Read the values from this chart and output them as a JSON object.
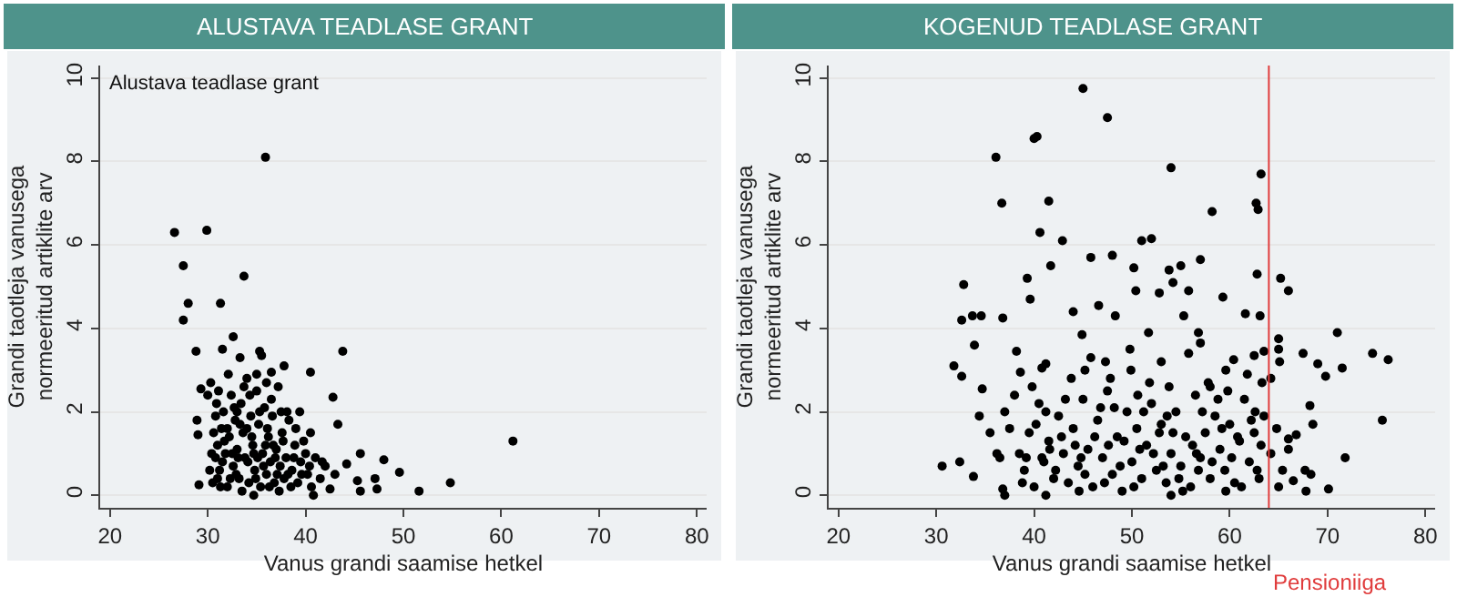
{
  "chart_data": [
    {
      "type": "scatter",
      "title": "ALUSTAVA TEADLASE GRANT",
      "xlabel": "Vanus grandi saamise hetkel",
      "ylabel": "Grandi taotleja vanusega\nnormeeritud artiklite arv",
      "annotations": [
        "Alustava teadlase grant"
      ],
      "xlim": [
        19,
        81
      ],
      "ylim": [
        -0.3,
        10.3
      ],
      "xticks": [
        20,
        30,
        40,
        50,
        60,
        70,
        80
      ],
      "yticks": [
        0,
        2,
        4,
        6,
        8,
        10
      ],
      "grid": "y",
      "marker": "circle",
      "color": "#000000",
      "x": [
        35.9,
        26.6,
        29.9,
        27.5,
        33.7,
        28.0,
        31.3,
        27.5,
        32.6,
        28.8,
        31.5,
        35.3,
        43.8,
        33.3,
        37.8,
        40.5,
        36.5,
        35.5,
        42.8,
        43.3,
        61.2,
        54.8,
        51.6,
        49.6,
        48.0,
        45.6,
        44.2,
        45.3,
        47.1,
        47.3,
        45.6,
        40.5,
        41.7,
        40.8,
        34.7,
        29.1,
        29.0,
        28.9,
        29.3,
        30.0,
        30.5,
        30.8,
        31.0,
        31.2,
        31.4,
        31.6,
        31.8,
        32.0,
        32.2,
        32.4,
        32.6,
        32.8,
        33.0,
        33.2,
        33.4,
        33.6,
        33.8,
        34.0,
        34.2,
        34.4,
        34.6,
        34.8,
        35.0,
        35.2,
        35.4,
        35.6,
        35.8,
        36.0,
        36.2,
        36.4,
        36.6,
        36.8,
        37.0,
        37.2,
        37.4,
        37.6,
        37.8,
        38.0,
        38.3,
        38.6,
        38.9,
        39.2,
        39.5,
        39.8,
        40.2,
        40.6,
        41.0,
        41.5,
        42.0,
        42.5,
        43.0,
        30.3,
        30.6,
        31.1,
        31.3,
        31.7,
        32.1,
        32.5,
        32.9,
        33.3,
        33.7,
        34.1,
        34.5,
        34.9,
        35.3,
        35.7,
        36.1,
        36.5,
        36.9,
        37.3,
        37.7,
        38.1,
        38.5,
        39.0,
        39.6,
        40.0,
        30.2,
        30.9,
        31.5,
        32.3,
        32.7,
        33.1,
        33.5,
        34.3,
        34.7,
        35.1,
        35.9,
        36.3,
        36.7,
        37.1,
        37.5,
        38.2,
        38.8,
        39.4,
        40.4,
        36.0,
        35.0,
        34.0,
        33.0,
        32.0,
        31.0,
        30.4,
        30.8
      ],
      "values": [
        8.1,
        6.3,
        6.35,
        5.5,
        5.25,
        4.6,
        4.6,
        4.2,
        3.8,
        3.45,
        3.5,
        3.45,
        3.45,
        3.3,
        3.1,
        2.95,
        2.95,
        3.35,
        2.35,
        1.7,
        1.3,
        0.3,
        0.1,
        0.55,
        0.85,
        1.0,
        0.75,
        0.35,
        0.4,
        0.15,
        0.1,
        1.5,
        0.8,
        0.0,
        0.0,
        0.25,
        1.45,
        1.8,
        2.55,
        2.4,
        0.3,
        0.9,
        1.2,
        0.6,
        1.6,
        2.0,
        1.0,
        0.2,
        1.4,
        2.4,
        0.7,
        1.8,
        1.1,
        0.4,
        2.2,
        1.5,
        0.9,
        2.8,
        0.3,
        1.9,
        1.2,
        0.6,
        2.5,
        1.7,
        0.2,
        1.0,
        2.1,
        0.5,
        1.4,
        0.8,
        1.9,
        0.3,
        1.1,
        2.6,
        0.7,
        1.5,
        0.4,
        0.9,
        1.8,
        0.6,
        1.2,
        0.3,
        0.8,
        1.3,
        0.5,
        0.2,
        0.9,
        0.4,
        0.7,
        0.15,
        0.5,
        2.7,
        1.5,
        2.5,
        0.2,
        1.3,
        2.9,
        1.0,
        0.5,
        1.7,
        2.6,
        0.8,
        1.4,
        0.4,
        2.0,
        0.7,
        1.6,
        2.3,
        0.9,
        0.1,
        1.3,
        2.0,
        0.2,
        1.6,
        0.5,
        1.0,
        0.6,
        2.2,
        0.8,
        0.4,
        2.1,
        0.9,
        0.1,
        2.4,
        1.0,
        0.9,
        1.2,
        0.2,
        1.2,
        0.5,
        2.0,
        0.5,
        0.9,
        2.0,
        0.7,
        2.7,
        2.9,
        1.6,
        2.0,
        1.6,
        0.4,
        1.0,
        1.9
      ]
    },
    {
      "type": "scatter",
      "title": "KOGENUD TEADLASE GRANT",
      "xlabel": "Vanus grandi saamise hetkel",
      "ylabel": "Grandi taotleja vanusega\nnormeeritud artiklite arv",
      "xlim": [
        19,
        81
      ],
      "ylim": [
        -0.3,
        10.3
      ],
      "xticks": [
        20,
        30,
        40,
        50,
        60,
        70,
        80
      ],
      "yticks": [
        0,
        2,
        4,
        6,
        8,
        10
      ],
      "grid": "y",
      "marker": "circle",
      "color": "#000000",
      "ref_lines": [
        {
          "axis": "x",
          "value": 64,
          "label": "Pensioniiga",
          "color": "#e03c3c"
        }
      ],
      "x": [
        45.0,
        47.5,
        40.0,
        40.3,
        36.1,
        54.0,
        63.2,
        36.7,
        41.5,
        62.7,
        62.9,
        58.2,
        40.6,
        42.9,
        51.0,
        52.0,
        41.7,
        45.8,
        48.0,
        57.0,
        39.3,
        32.8,
        50.2,
        55.0,
        53.8,
        54.2,
        62.8,
        65.2,
        66.0,
        39.6,
        50.4,
        52.8,
        55.8,
        59.3,
        61.6,
        63.1,
        32.6,
        33.7,
        34.6,
        36.8,
        44.0,
        48.3,
        46.6,
        33.9,
        31.8,
        32.6,
        34.4,
        34.7,
        30.6,
        32.4,
        33.8,
        37.0,
        36.8,
        41.2,
        54.0,
        70.1,
        71.8,
        75.6,
        76.2,
        74.6,
        71.5,
        71.0,
        69.8,
        69.0,
        67.5,
        65.0,
        65.0,
        65.1,
        64.2,
        63.5,
        62.5,
        63.3,
        68.2,
        68.5,
        66.8,
        66.0,
        67.7,
        68.3,
        67.8,
        65.0,
        66.5,
        60.4,
        56.8,
        57.0,
        58.0,
        59.6,
        55.3,
        51.7,
        44.9,
        45.2,
        41.2,
        40.8,
        38.2,
        38.6,
        47.3,
        49.9,
        53.0,
        38.5,
        39.0,
        39.5,
        40.0,
        40.5,
        41.0,
        41.5,
        42.0,
        42.5,
        43.0,
        43.5,
        44.0,
        44.5,
        45.0,
        45.5,
        46.0,
        46.5,
        47.0,
        47.5,
        48.0,
        48.5,
        49.0,
        49.5,
        50.0,
        50.5,
        51.0,
        51.5,
        52.0,
        52.5,
        53.0,
        53.5,
        54.0,
        54.5,
        55.0,
        55.5,
        56.0,
        56.5,
        57.0,
        57.5,
        58.0,
        58.5,
        59.0,
        59.5,
        60.0,
        60.5,
        61.0,
        61.5,
        62.0,
        62.5,
        63.0,
        63.5,
        64.2,
        64.8,
        65.4,
        66.0,
        37.5,
        38.0,
        39.2,
        40.2,
        41.2,
        42.2,
        43.2,
        44.2,
        45.2,
        46.2,
        47.2,
        48.2,
        49.2,
        50.2,
        51.2,
        52.2,
        53.2,
        54.2,
        55.2,
        56.2,
        57.2,
        58.2,
        59.2,
        60.2,
        61.2,
        62.2,
        63.2,
        44.8,
        46.8,
        48.8,
        50.8,
        52.8,
        54.8,
        56.8,
        58.8,
        60.8,
        62.8,
        42.8,
        40.8,
        39.8,
        43.8,
        45.8,
        47.8,
        49.8,
        51.8,
        53.8,
        55.8,
        57.8,
        59.8,
        61.8,
        44.6,
        47.6,
        50.6,
        53.6,
        56.6,
        59.6,
        62.6,
        41.6,
        38.8,
        36.2,
        35.5,
        37.0,
        36.5
      ],
      "values": [
        9.75,
        9.05,
        8.55,
        8.6,
        8.1,
        7.85,
        7.7,
        7.0,
        7.05,
        7.0,
        6.85,
        6.8,
        6.3,
        6.1,
        6.1,
        6.15,
        5.5,
        5.7,
        5.75,
        5.65,
        5.2,
        5.05,
        5.45,
        5.5,
        5.4,
        5.1,
        5.3,
        5.2,
        4.9,
        4.7,
        4.9,
        4.85,
        4.9,
        4.75,
        4.35,
        4.3,
        4.2,
        4.3,
        4.3,
        4.25,
        4.4,
        4.3,
        4.55,
        3.6,
        3.1,
        2.85,
        1.9,
        2.55,
        0.7,
        0.8,
        0.45,
        0.0,
        0.15,
        0.0,
        0.0,
        0.15,
        0.9,
        1.8,
        3.25,
        3.4,
        3.05,
        3.9,
        2.85,
        3.15,
        3.4,
        3.75,
        3.5,
        3.2,
        2.8,
        3.45,
        3.35,
        2.7,
        2.15,
        1.7,
        1.45,
        1.35,
        0.6,
        0.5,
        0.1,
        0.2,
        0.35,
        3.25,
        3.9,
        3.65,
        2.6,
        3.0,
        4.3,
        3.9,
        3.85,
        3.0,
        3.15,
        3.05,
        3.45,
        2.95,
        3.2,
        3.0,
        3.2,
        1.0,
        0.6,
        1.5,
        0.2,
        2.2,
        0.8,
        1.3,
        0.4,
        1.9,
        1.0,
        0.3,
        1.6,
        0.7,
        2.3,
        1.1,
        0.2,
        1.8,
        0.9,
        2.5,
        0.5,
        1.4,
        0.1,
        2.0,
        0.8,
        1.6,
        0.4,
        1.2,
        2.2,
        0.6,
        1.7,
        0.3,
        1.0,
        2.0,
        0.7,
        1.4,
        0.2,
        2.4,
        0.9,
        1.5,
        0.4,
        1.9,
        1.1,
        0.6,
        1.7,
        0.3,
        1.3,
        2.3,
        0.8,
        1.5,
        0.4,
        1.9,
        1.0,
        1.6,
        0.6,
        1.1,
        1.6,
        2.4,
        0.9,
        1.7,
        2.0,
        0.6,
        2.3,
        1.2,
        0.5,
        1.4,
        0.3,
        2.1,
        1.3,
        0.2,
        2.0,
        1.0,
        0.7,
        1.5,
        0.1,
        1.2,
        2.0,
        0.8,
        1.6,
        0.9,
        0.2,
        1.8,
        1.2,
        0.9,
        2.1,
        0.7,
        1.1,
        1.5,
        0.4,
        0.6,
        2.3,
        1.4,
        0.6,
        1.4,
        0.9,
        2.6,
        2.8,
        3.3,
        2.8,
        3.5,
        2.7,
        2.6,
        3.4,
        2.7,
        2.5,
        2.9,
        0.1,
        1.2,
        2.4,
        1.9,
        1.0,
        0.1,
        2.0,
        1.1,
        0.3,
        1.0,
        1.5,
        2.0,
        0.9
      ]
    }
  ]
}
